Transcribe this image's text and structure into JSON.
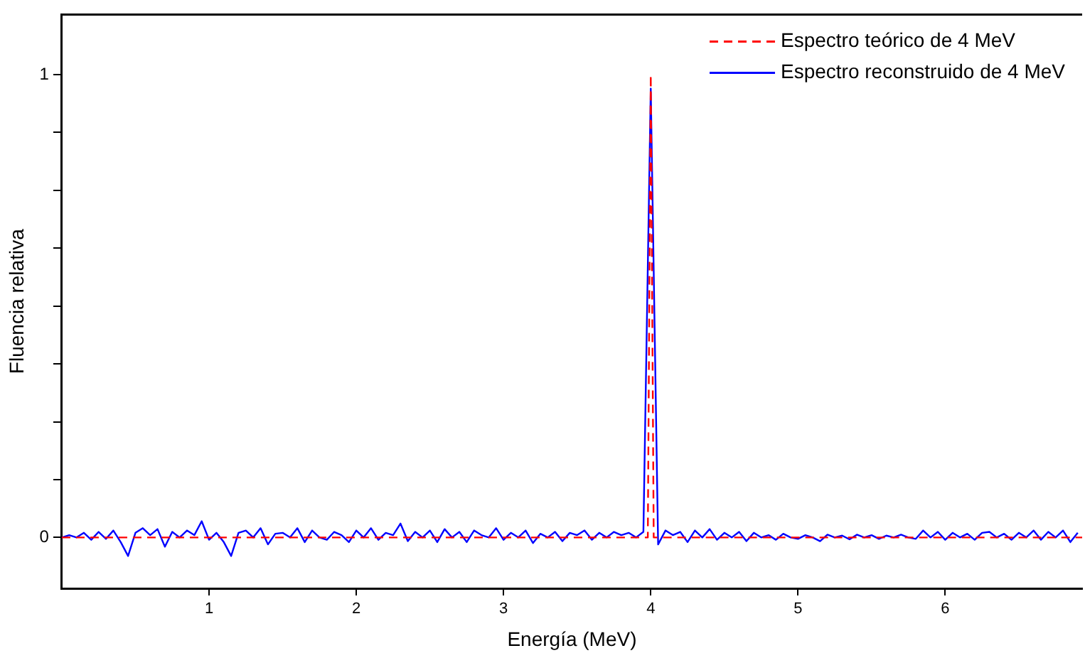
{
  "chart_data": {
    "type": "line",
    "xlabel": "Energía (MeV)",
    "ylabel": "Fluencia relativa",
    "xlim": [
      0,
      6.93
    ],
    "xticks": [
      1,
      2,
      3,
      4,
      5,
      6
    ],
    "ylim": [
      -0.11,
      1.13
    ],
    "yticks": [
      {
        "value": 0,
        "label": "0"
      },
      {
        "value": 0.125,
        "label": null
      },
      {
        "value": 0.25,
        "label": null
      },
      {
        "value": 0.375,
        "label": null
      },
      {
        "value": 0.5,
        "label": null
      },
      {
        "value": 0.625,
        "label": null
      },
      {
        "value": 0.75,
        "label": null
      },
      {
        "value": 0.875,
        "label": null
      },
      {
        "value": 1,
        "label": "1"
      }
    ],
    "grid": false,
    "legend": "top right",
    "marker": "none",
    "series": [
      {
        "name": "Espectro teórico de 4 MeV",
        "color": "#ff0000",
        "line_style": "dashed",
        "x": [
          0,
          3.98,
          4.0,
          4.02,
          6.93
        ],
        "values": [
          0,
          0,
          1,
          0,
          0
        ]
      },
      {
        "name": "Espectro reconstruido de 4 MeV",
        "color": "#0000ff",
        "line_style": "solid",
        "x": [
          0,
          0.05,
          0.1,
          0.15,
          0.2,
          0.25,
          0.3,
          0.35,
          0.4,
          0.45,
          0.5,
          0.55,
          0.6,
          0.65,
          0.7,
          0.75,
          0.8,
          0.85,
          0.9,
          0.95,
          1.0,
          1.05,
          1.1,
          1.15,
          1.2,
          1.25,
          1.3,
          1.35,
          1.4,
          1.45,
          1.5,
          1.55,
          1.6,
          1.65,
          1.7,
          1.75,
          1.8,
          1.85,
          1.9,
          1.95,
          2.0,
          2.05,
          2.1,
          2.15,
          2.2,
          2.25,
          2.3,
          2.35,
          2.4,
          2.45,
          2.5,
          2.55,
          2.6,
          2.65,
          2.7,
          2.75,
          2.8,
          2.85,
          2.9,
          2.95,
          3.0,
          3.05,
          3.1,
          3.15,
          3.2,
          3.25,
          3.3,
          3.35,
          3.4,
          3.45,
          3.5,
          3.55,
          3.6,
          3.65,
          3.7,
          3.75,
          3.8,
          3.85,
          3.9,
          3.95,
          4.0,
          4.05,
          4.1,
          4.15,
          4.2,
          4.25,
          4.3,
          4.35,
          4.4,
          4.45,
          4.5,
          4.55,
          4.6,
          4.65,
          4.7,
          4.75,
          4.8,
          4.85,
          4.9,
          4.95,
          5.0,
          5.05,
          5.1,
          5.15,
          5.2,
          5.25,
          5.3,
          5.35,
          5.4,
          5.45,
          5.5,
          5.55,
          5.6,
          5.65,
          5.7,
          5.75,
          5.8,
          5.85,
          5.9,
          5.95,
          6.0,
          6.05,
          6.1,
          6.15,
          6.2,
          6.25,
          6.3,
          6.35,
          6.4,
          6.45,
          6.5,
          6.55,
          6.6,
          6.65,
          6.7,
          6.75,
          6.8,
          6.85,
          6.9
        ],
        "values": [
          0.0,
          0.005,
          0.0,
          0.01,
          -0.005,
          0.012,
          -0.003,
          0.015,
          -0.01,
          -0.04,
          0.01,
          0.02,
          0.005,
          0.018,
          -0.02,
          0.012,
          0.0,
          0.015,
          0.005,
          0.035,
          -0.005,
          0.01,
          -0.01,
          -0.04,
          0.01,
          0.015,
          0.0,
          0.02,
          -0.015,
          0.008,
          0.01,
          0.0,
          0.02,
          -0.01,
          0.015,
          0.0,
          -0.005,
          0.012,
          0.005,
          -0.01,
          0.015,
          0.0,
          0.02,
          -0.005,
          0.01,
          0.005,
          0.03,
          -0.008,
          0.012,
          0.0,
          0.015,
          -0.01,
          0.018,
          0.0,
          0.012,
          -0.01,
          0.015,
          0.005,
          0.0,
          0.02,
          -0.005,
          0.01,
          0.0,
          0.015,
          -0.012,
          0.008,
          0.0,
          0.012,
          -0.008,
          0.01,
          0.005,
          0.015,
          -0.005,
          0.01,
          0.0,
          0.012,
          0.005,
          0.01,
          0.0,
          0.012,
          0.97,
          -0.015,
          0.015,
          0.005,
          0.012,
          -0.01,
          0.015,
          0.0,
          0.018,
          -0.005,
          0.01,
          0.0,
          0.012,
          -0.008,
          0.01,
          0.0,
          0.005,
          -0.005,
          0.008,
          0.0,
          -0.003,
          0.005,
          0.0,
          -0.008,
          0.006,
          0.0,
          0.004,
          -0.004,
          0.006,
          0.0,
          0.005,
          -0.003,
          0.004,
          0.0,
          0.006,
          0.0,
          -0.003,
          0.015,
          0.0,
          0.012,
          -0.005,
          0.01,
          0.0,
          0.008,
          -0.005,
          0.01,
          0.012,
          0.0,
          0.008,
          -0.005,
          0.01,
          0.0,
          0.015,
          -0.005,
          0.012,
          0.0,
          0.015,
          -0.01,
          0.01
        ]
      }
    ]
  }
}
